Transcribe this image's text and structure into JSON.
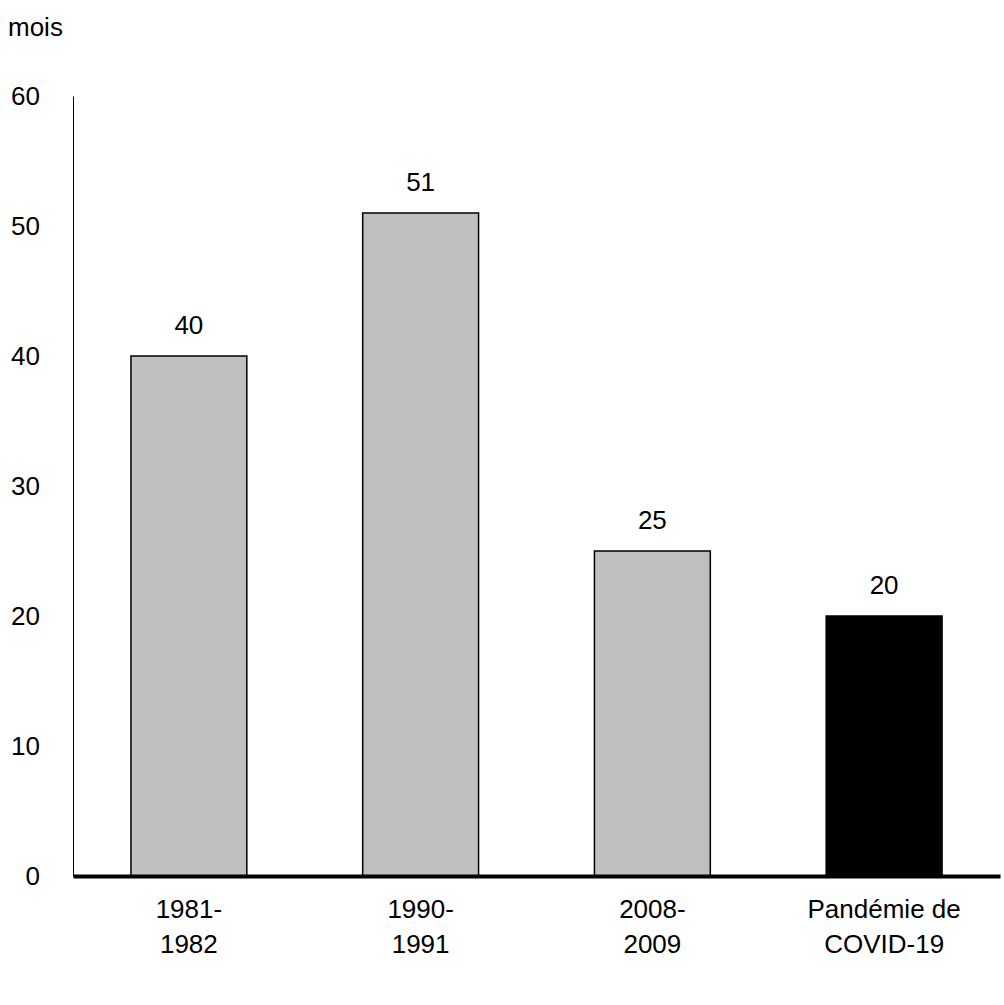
{
  "chart_data": {
    "type": "bar",
    "y_label": "mois",
    "categories": [
      "1981-\n1982",
      "1990-\n1991",
      "2008-\n2009",
      "Pandémie de\nCOVID-19"
    ],
    "values": [
      40,
      51,
      25,
      20
    ],
    "colors": [
      "#c0c0c0",
      "#c0c0c0",
      "#c0c0c0",
      "#000000"
    ],
    "ylim": [
      0,
      60
    ],
    "yticks": [
      0,
      10,
      20,
      30,
      40,
      50,
      60
    ],
    "grid": false,
    "data_labels": true
  }
}
